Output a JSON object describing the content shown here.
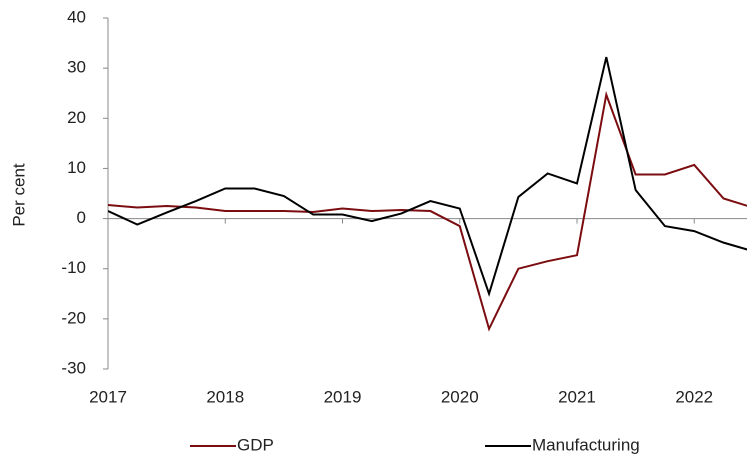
{
  "chart_data": {
    "type": "line",
    "ylabel": "Per cent",
    "x": [
      2017,
      2017.25,
      2017.5,
      2017.75,
      2018,
      2018.25,
      2018.5,
      2018.75,
      2019,
      2019.25,
      2019.5,
      2019.75,
      2020,
      2020.25,
      2020.5,
      2020.75,
      2021,
      2021.25,
      2021.5,
      2021.75,
      2022,
      2022.25,
      2022.5
    ],
    "series": [
      {
        "name": "GDP",
        "color": "#7b0c10",
        "values": [
          2.7,
          2.2,
          2.5,
          2.2,
          1.5,
          1.5,
          1.5,
          1.3,
          2,
          1.5,
          1.7,
          1.5,
          -1.5,
          -22,
          -10,
          -8.5,
          -7.3,
          24.7,
          8.8,
          8.8,
          10.7,
          4,
          2.2
        ]
      },
      {
        "name": "Manufacturing",
        "color": "#000000",
        "values": [
          1.5,
          -1.2,
          1.2,
          3.5,
          6,
          6,
          4.5,
          0.8,
          0.8,
          -0.5,
          1,
          3.5,
          2,
          -15,
          4.3,
          9,
          7,
          32.2,
          5.7,
          -1.5,
          -2.5,
          -4.8,
          -6.5
        ]
      }
    ],
    "xlim": [
      2017,
      2022.45
    ],
    "xticks": [
      2017,
      2018,
      2019,
      2020,
      2021,
      2022
    ],
    "ylim": [
      -30,
      40
    ],
    "yticks": [
      -30,
      -20,
      -10,
      0,
      10,
      20,
      30,
      40
    ]
  }
}
